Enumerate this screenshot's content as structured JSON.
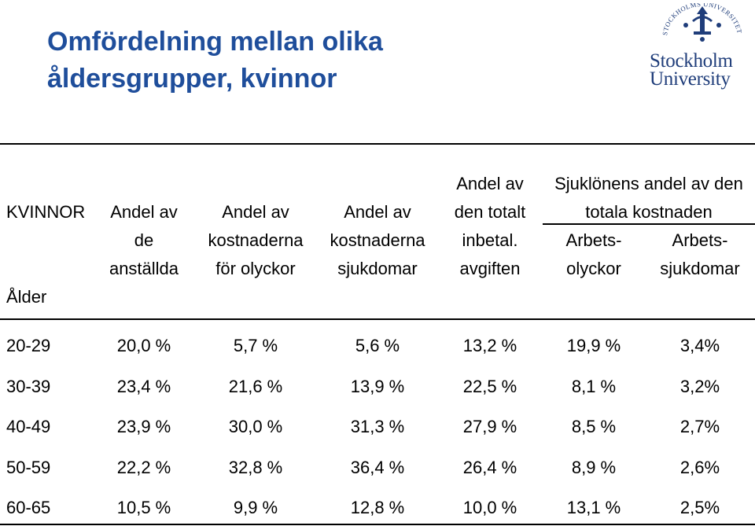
{
  "title": [
    "Omfördelning mellan olika",
    "åldersgrupper, kvinnor"
  ],
  "logo": {
    "lines": [
      "Stockholm",
      "University"
    ],
    "seal_text": "STOCKHOLMS UNIVERSITET"
  },
  "table": {
    "corner_top": "KVINNOR",
    "corner_bottom": "Ålder",
    "columns": [
      [
        "Andel av",
        "de",
        "anställda"
      ],
      [
        "Andel av",
        "kostnaderna",
        "för olyckor"
      ],
      [
        "Andel av",
        "kostnaderna",
        "sjukdomar"
      ],
      [
        "Andel av",
        "den totalt",
        "inbetal.",
        "avgiften"
      ]
    ],
    "group_header": [
      "Sjuklönens andel av den",
      "totala kostnaden"
    ],
    "group_columns": [
      [
        "Arbets-",
        "olyckor"
      ],
      [
        "Arbets-",
        "sjukdomar"
      ]
    ],
    "rows": [
      {
        "label": "20-29",
        "values": [
          "20,0 %",
          "5,7 %",
          "5,6 %",
          "13,2 %",
          "19,9 %",
          "3,4%"
        ]
      },
      {
        "label": "30-39",
        "values": [
          "23,4 %",
          "21,6 %",
          "13,9 %",
          "22,5 %",
          "8,1 %",
          "3,2%"
        ]
      },
      {
        "label": "40-49",
        "values": [
          "23,9 %",
          "30,0 %",
          "31,3 %",
          "27,9 %",
          "8,5 %",
          "2,7%"
        ]
      },
      {
        "label": "50-59",
        "values": [
          "22,2 %",
          "32,8 %",
          "36,4 %",
          "26,4 %",
          "8,9 %",
          "2,6%"
        ]
      },
      {
        "label": "60-65",
        "values": [
          "10,5 %",
          "9,9 %",
          "12,8 %",
          "10,0 %",
          "13,1 %",
          "2,5%"
        ]
      }
    ]
  }
}
